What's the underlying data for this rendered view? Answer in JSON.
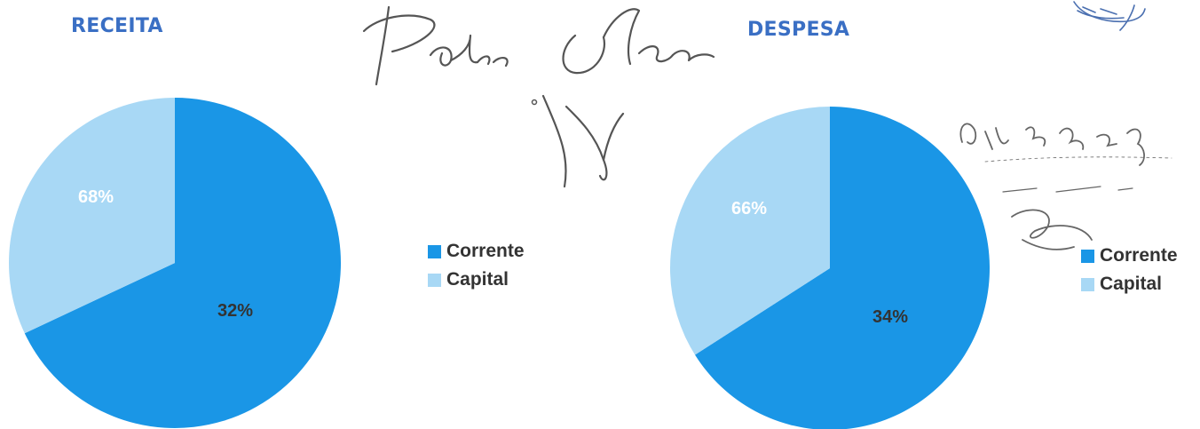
{
  "colors": {
    "corrente": "#1a96e6",
    "capital": "#a8d8f5",
    "title": "#3a6fc4",
    "ink": "#555555"
  },
  "chart_data": [
    {
      "type": "pie",
      "title": "RECEITA",
      "slices": [
        {
          "name": "Corrente",
          "value": 68,
          "label": "68%"
        },
        {
          "name": "Capital",
          "value": 32,
          "label": "32%"
        }
      ],
      "legend": {
        "position": "right",
        "items": [
          "Corrente",
          "Capital"
        ]
      }
    },
    {
      "type": "pie",
      "title": "DESPESA",
      "slices": [
        {
          "name": "Corrente",
          "value": 66,
          "label": "66%"
        },
        {
          "name": "Capital",
          "value": 34,
          "label": "34%"
        }
      ],
      "legend": {
        "position": "right",
        "items": [
          "Corrente",
          "Capital"
        ]
      }
    }
  ],
  "annotations": {
    "signatures": [
      "Pedro Ribeiro"
    ]
  }
}
